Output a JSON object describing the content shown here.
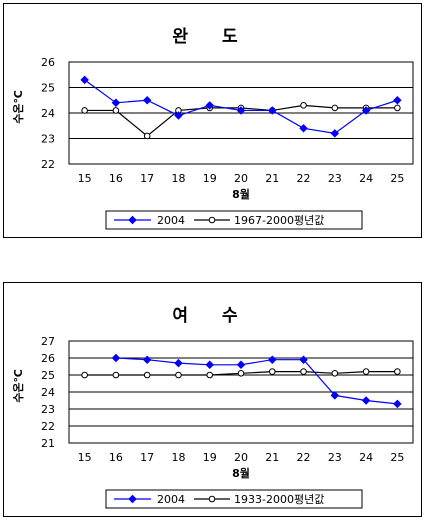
{
  "colors": {
    "series_2004": "#0000ff",
    "series_avg": "#000000"
  },
  "chart_data": [
    {
      "type": "line",
      "title": "완 도",
      "xlabel": "8월",
      "ylabel": "수온℃",
      "x": [
        15,
        16,
        17,
        18,
        19,
        20,
        21,
        22,
        23,
        24,
        25
      ],
      "yticks": [
        22,
        23,
        24,
        25,
        26
      ],
      "ylim": [
        22,
        26
      ],
      "grid": true,
      "legend_position": "bottom",
      "series": [
        {
          "name": "2004",
          "color": "#0000ff",
          "marker": "filled-diamond",
          "values": [
            25.3,
            24.4,
            24.5,
            23.9,
            24.3,
            24.1,
            24.1,
            23.4,
            23.2,
            24.1,
            24.5
          ]
        },
        {
          "name": "1967-2000평년값",
          "color": "#000000",
          "marker": "open-circle",
          "values": [
            24.1,
            24.1,
            23.1,
            24.1,
            24.2,
            24.2,
            24.1,
            24.3,
            24.2,
            24.2,
            24.2
          ]
        }
      ]
    },
    {
      "type": "line",
      "title": "여 수",
      "xlabel": "8월",
      "ylabel": "수온℃",
      "x": [
        15,
        16,
        17,
        18,
        19,
        20,
        21,
        22,
        23,
        24,
        25
      ],
      "yticks": [
        21,
        22,
        23,
        24,
        25,
        26,
        27
      ],
      "ylim": [
        21,
        27
      ],
      "grid": true,
      "legend_position": "bottom",
      "series": [
        {
          "name": "2004",
          "color": "#0000ff",
          "marker": "filled-diamond",
          "values": [
            null,
            26.0,
            25.9,
            25.7,
            25.6,
            25.6,
            25.9,
            25.9,
            23.8,
            23.5,
            23.3
          ]
        },
        {
          "name": "1933-2000평년값",
          "color": "#000000",
          "marker": "open-circle",
          "values": [
            25.0,
            25.0,
            25.0,
            25.0,
            25.0,
            25.1,
            25.2,
            25.2,
            25.1,
            25.2,
            25.2
          ]
        }
      ]
    }
  ]
}
